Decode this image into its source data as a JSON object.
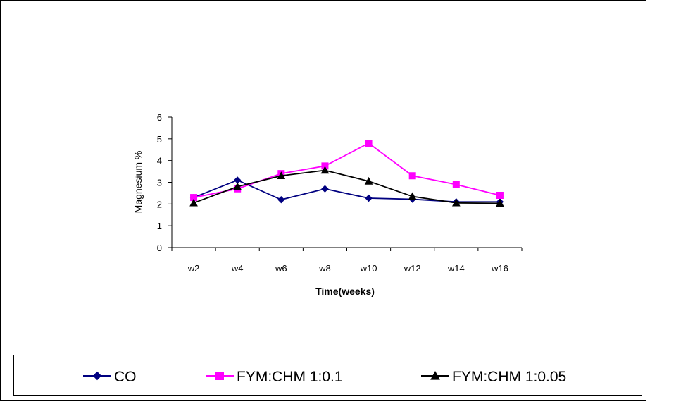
{
  "chart_data": {
    "type": "line",
    "title": "",
    "xlabel": "Time(weeks)",
    "ylabel": "Magnesium %",
    "categories": [
      "w2",
      "w4",
      "w6",
      "w8",
      "w10",
      "w12",
      "w14",
      "w16"
    ],
    "ylim": [
      0,
      6
    ],
    "yticks": [
      "0",
      "1",
      "2",
      "3",
      "4",
      "5",
      "6"
    ],
    "grid": false,
    "legend_position": "bottom",
    "series": [
      {
        "name": "CO",
        "color": "#000080",
        "marker": "diamond",
        "values": [
          2.3,
          3.1,
          2.2,
          2.7,
          2.27,
          2.22,
          2.1,
          2.1
        ]
      },
      {
        "name": "FYM:CHM 1:0.1",
        "color": "#ff00ff",
        "marker": "square",
        "values": [
          2.3,
          2.7,
          3.4,
          3.75,
          4.8,
          3.3,
          2.9,
          2.4
        ]
      },
      {
        "name": "FYM:CHM 1:0.05",
        "color": "#000000",
        "marker": "triangle",
        "values": [
          2.05,
          2.8,
          3.3,
          3.55,
          3.05,
          2.35,
          2.05,
          2.03
        ]
      }
    ]
  }
}
